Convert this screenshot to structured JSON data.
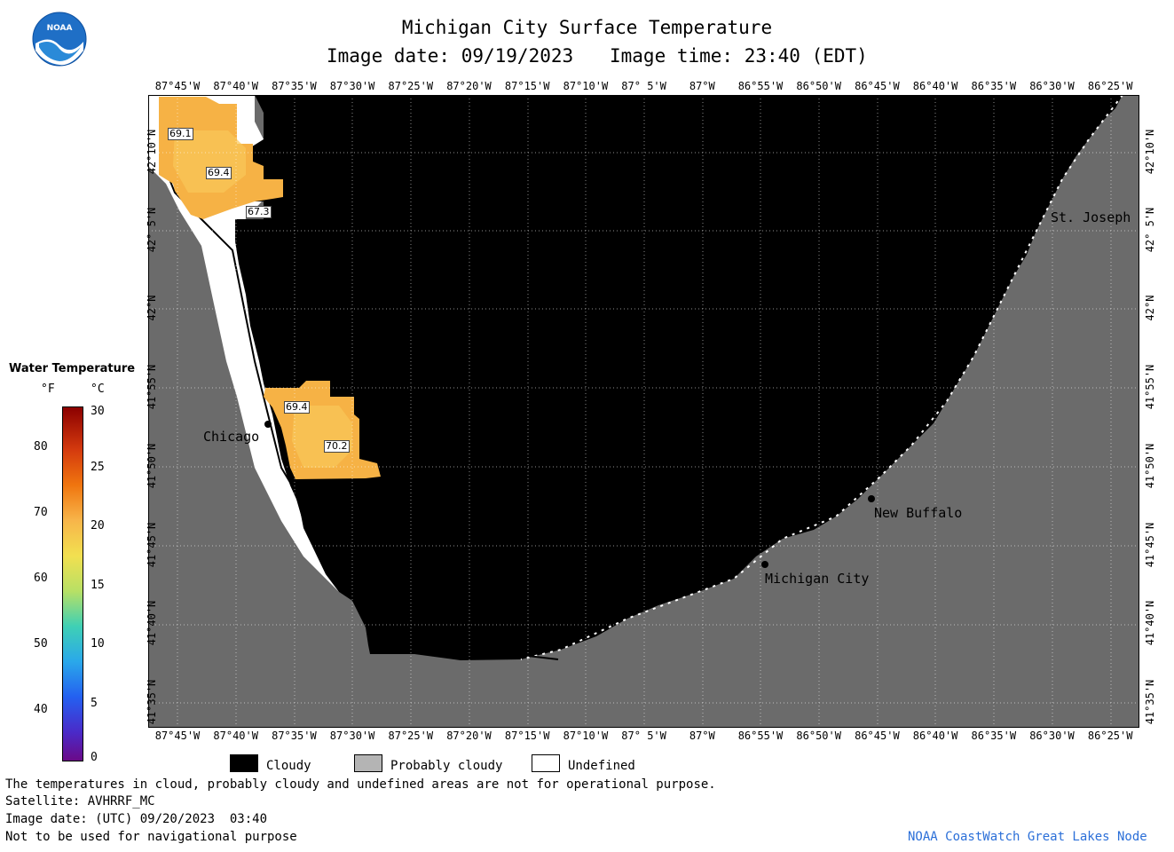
{
  "header": {
    "title": "Michigan City Surface Temperature",
    "image_date": "Image date: 09/19/2023",
    "image_time": "Image time: 23:40 (EDT)",
    "logo_text": "NOAA"
  },
  "axes": {
    "lon_labels": [
      "87°45'W",
      "87°40'W",
      "87°35'W",
      "87°30'W",
      "87°25'W",
      "87°20'W",
      "87°15'W",
      "87°10'W",
      "87° 5'W",
      "87°W",
      "86°55'W",
      "86°50'W",
      "86°45'W",
      "86°40'W",
      "86°35'W",
      "86°30'W",
      "86°25'W"
    ],
    "lat_labels": [
      "42°10'N",
      "42° 5'N",
      "42°N",
      "41°55'N",
      "41°50'N",
      "41°45'N",
      "41°40'N",
      "41°35'N"
    ]
  },
  "map": {
    "colors": {
      "cloud": "#000000",
      "land": "#6b6b6b",
      "undefined": "#ffffff",
      "warm": "#f6b245",
      "warm_light": "#f9c75a"
    },
    "cities": [
      {
        "name": "Chicago"
      },
      {
        "name": "New Buffalo"
      },
      {
        "name": "Michigan City"
      },
      {
        "name": "St. Joseph"
      }
    ],
    "temperature_labels": [
      "69.1",
      "69.4",
      "67.3",
      "69.4",
      "70.2"
    ]
  },
  "legend": {
    "title": "Water Temperature",
    "unit_f": "°F",
    "unit_c": "°C",
    "f_ticks": [
      "80",
      "70",
      "60",
      "50",
      "40"
    ],
    "c_ticks": [
      "30",
      "25",
      "20",
      "15",
      "10",
      "5",
      "0"
    ],
    "categories": [
      {
        "label": "Cloudy",
        "color": "#000000"
      },
      {
        "label": "Probably cloudy",
        "color": "#b4b4b4"
      },
      {
        "label": "Undefined",
        "color": "#ffffff"
      }
    ]
  },
  "footer": {
    "disclaimer": "The temperatures in cloud, probably cloudy and undefined areas are not for operational purpose.",
    "satellite": "Satellite: AVHRRF_MC",
    "utc_date": "Image date: (UTC) 09/20/2023  03:40",
    "nav_warning": "Not to be used for navigational purpose",
    "credit": "NOAA CoastWatch Great Lakes Node"
  }
}
